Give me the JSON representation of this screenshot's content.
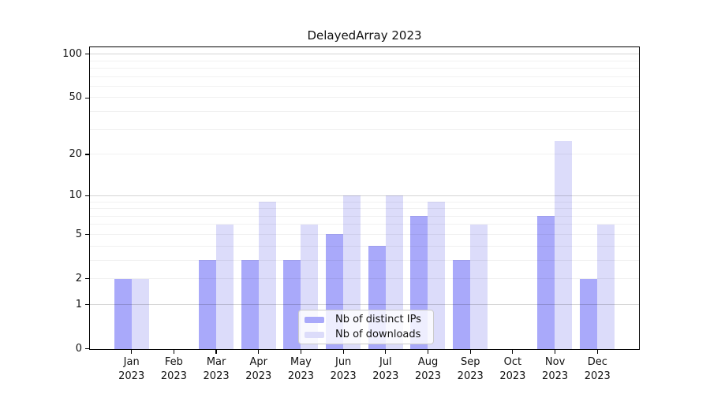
{
  "title": "DelayedArray 2023",
  "chart_data": {
    "type": "bar",
    "title": "DelayedArray 2023",
    "categories": [
      "Jan",
      "Feb",
      "Mar",
      "Apr",
      "May",
      "Jun",
      "Jul",
      "Aug",
      "Sep",
      "Oct",
      "Nov",
      "Dec"
    ],
    "year_label": "2023",
    "series": [
      {
        "name": "Nb of distinct IPs",
        "color": "#a9a9fa",
        "values": [
          2,
          0,
          3,
          3,
          3,
          5,
          4,
          7,
          3,
          0,
          7,
          2
        ]
      },
      {
        "name": "Nb of downloads",
        "color": "#dcdcfa",
        "values": [
          2,
          0,
          6,
          9,
          6,
          10,
          10,
          9,
          6,
          0,
          25,
          6
        ]
      }
    ],
    "yscale": "log10(1+x)",
    "ylim": [
      0,
      114
    ],
    "yticks": [
      0,
      1,
      2,
      5,
      10,
      20,
      50,
      100
    ],
    "grid": {
      "on": true,
      "major_lines": [
        1,
        10,
        100
      ],
      "minor_lines": [
        2,
        3,
        4,
        5,
        6,
        7,
        8,
        9,
        20,
        30,
        40,
        50,
        60,
        70,
        80,
        90
      ]
    },
    "legend": {
      "position": "lower-center"
    }
  }
}
